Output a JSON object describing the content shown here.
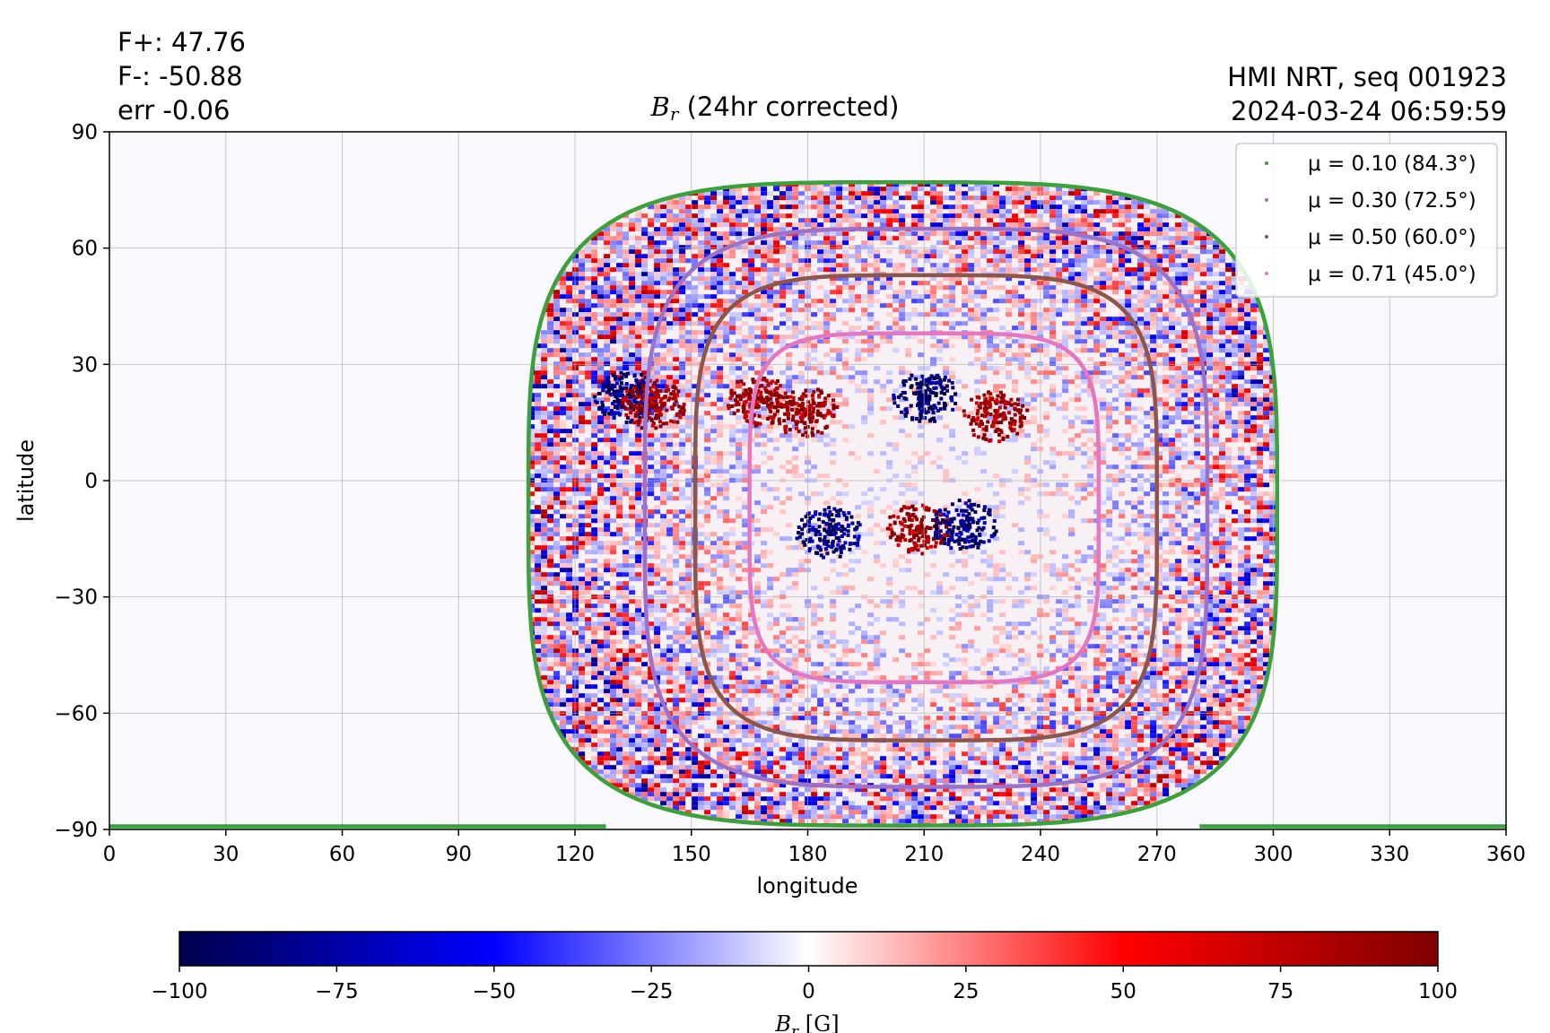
{
  "header": {
    "stats": [
      "F+: 47.76",
      "F-: -50.88",
      "err -0.06"
    ],
    "source": [
      "HMI NRT, seq 001923",
      "2024-03-24 06:59:59"
    ],
    "title_symbol": "B",
    "title_subscript": "r",
    "title_rest": " (24hr corrected)"
  },
  "chart_data": {
    "type": "heatmap",
    "title": "Br (24hr corrected)",
    "xlabel": "longitude",
    "ylabel": "latitude",
    "xlim": [
      0,
      360
    ],
    "ylim": [
      -90,
      90
    ],
    "xticks": [
      0,
      30,
      60,
      90,
      120,
      150,
      180,
      210,
      240,
      270,
      300,
      330,
      360
    ],
    "yticks": [
      90,
      60,
      30,
      0,
      -30,
      -60,
      -90
    ],
    "grid": true,
    "legend_position": "top-right",
    "legend": [
      {
        "label": "μ = 0.10 (84.3°)",
        "mu": 0.1,
        "angle_deg": 84.3,
        "color": "#3ba13b"
      },
      {
        "label": "μ = 0.30 (72.5°)",
        "mu": 0.3,
        "angle_deg": 72.5,
        "color": "#9b72c8"
      },
      {
        "label": "μ = 0.50 (60.0°)",
        "mu": 0.5,
        "angle_deg": 60.0,
        "color": "#8c564b"
      },
      {
        "label": "μ = 0.71 (45.0°)",
        "mu": 0.71,
        "angle_deg": 45.0,
        "color": "#e377c2"
      }
    ],
    "disk_center": {
      "longitude": 210,
      "latitude": -7
    },
    "contours_extent": [
      {
        "mu": 0.1,
        "lon_min": 108,
        "lon_max": 301,
        "lat_min": -89,
        "lat_max": 77
      },
      {
        "mu": 0.3,
        "lon_min": 138,
        "lon_max": 283,
        "lat_min": -79,
        "lat_max": 65
      },
      {
        "mu": 0.5,
        "lon_min": 151,
        "lon_max": 270,
        "lat_min": -67,
        "lat_max": 53
      },
      {
        "mu": 0.71,
        "lon_min": 165,
        "lon_max": 255,
        "lat_min": -52,
        "lat_max": 38
      }
    ],
    "active_regions": [
      {
        "longitude": 210,
        "latitude": 22,
        "polarity": "negative"
      },
      {
        "longitude": 228,
        "latitude": 17,
        "polarity": "positive"
      },
      {
        "longitude": 208,
        "latitude": -12,
        "polarity": "positive"
      },
      {
        "longitude": 220,
        "latitude": -11,
        "polarity": "negative"
      },
      {
        "longitude": 185,
        "latitude": -13,
        "polarity": "negative"
      },
      {
        "longitude": 179,
        "latitude": 18,
        "polarity": "positive"
      },
      {
        "longitude": 167,
        "latitude": 21,
        "polarity": "positive"
      },
      {
        "longitude": 133,
        "latitude": 22,
        "polarity": "negative"
      },
      {
        "longitude": 140,
        "latitude": 20,
        "polarity": "positive"
      }
    ],
    "colorbar": {
      "label_symbol": "B",
      "label_subscript": "r",
      "label_unit": " [G]",
      "vmin": -100,
      "vmax": 100,
      "ticks": [
        -100,
        -75,
        -50,
        -25,
        0,
        25,
        50,
        75,
        100
      ],
      "colormap": "seismic",
      "colors": [
        "#00004c",
        "#0000ff",
        "#ffffff",
        "#ff0000",
        "#800000"
      ]
    }
  }
}
